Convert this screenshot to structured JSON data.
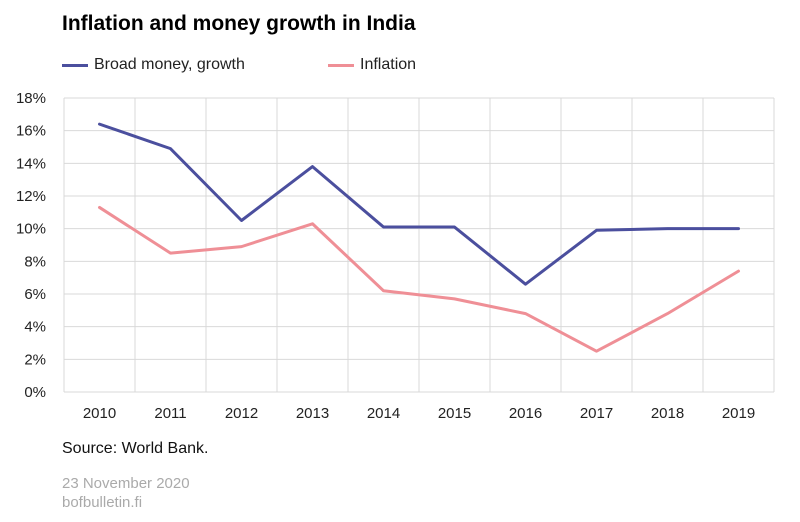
{
  "chart_data": {
    "type": "line",
    "title": "Inflation and money growth in India",
    "xlabel": "",
    "ylabel": "",
    "categories": [
      "2010",
      "2011",
      "2012",
      "2013",
      "2014",
      "2015",
      "2016",
      "2017",
      "2018",
      "2019"
    ],
    "ylim": [
      0,
      18
    ],
    "y_ticks": [
      "0%",
      "2%",
      "4%",
      "6%",
      "8%",
      "10%",
      "12%",
      "14%",
      "16%",
      "18%"
    ],
    "grid": true,
    "legend_position": "top-left",
    "series": [
      {
        "name": "Broad money, growth",
        "color": "#4b4f9e",
        "values": [
          16.4,
          14.9,
          10.5,
          13.8,
          10.1,
          10.1,
          6.6,
          9.9,
          10.0,
          10.0
        ]
      },
      {
        "name": "Inflation",
        "color": "#ef8f96",
        "values": [
          11.3,
          8.5,
          8.9,
          10.3,
          6.2,
          5.7,
          4.8,
          2.5,
          4.8,
          7.4
        ]
      }
    ]
  },
  "source": "Source:  World Bank.",
  "footer": {
    "date": "23 November  2020",
    "site": "bofbulletin.fi"
  }
}
